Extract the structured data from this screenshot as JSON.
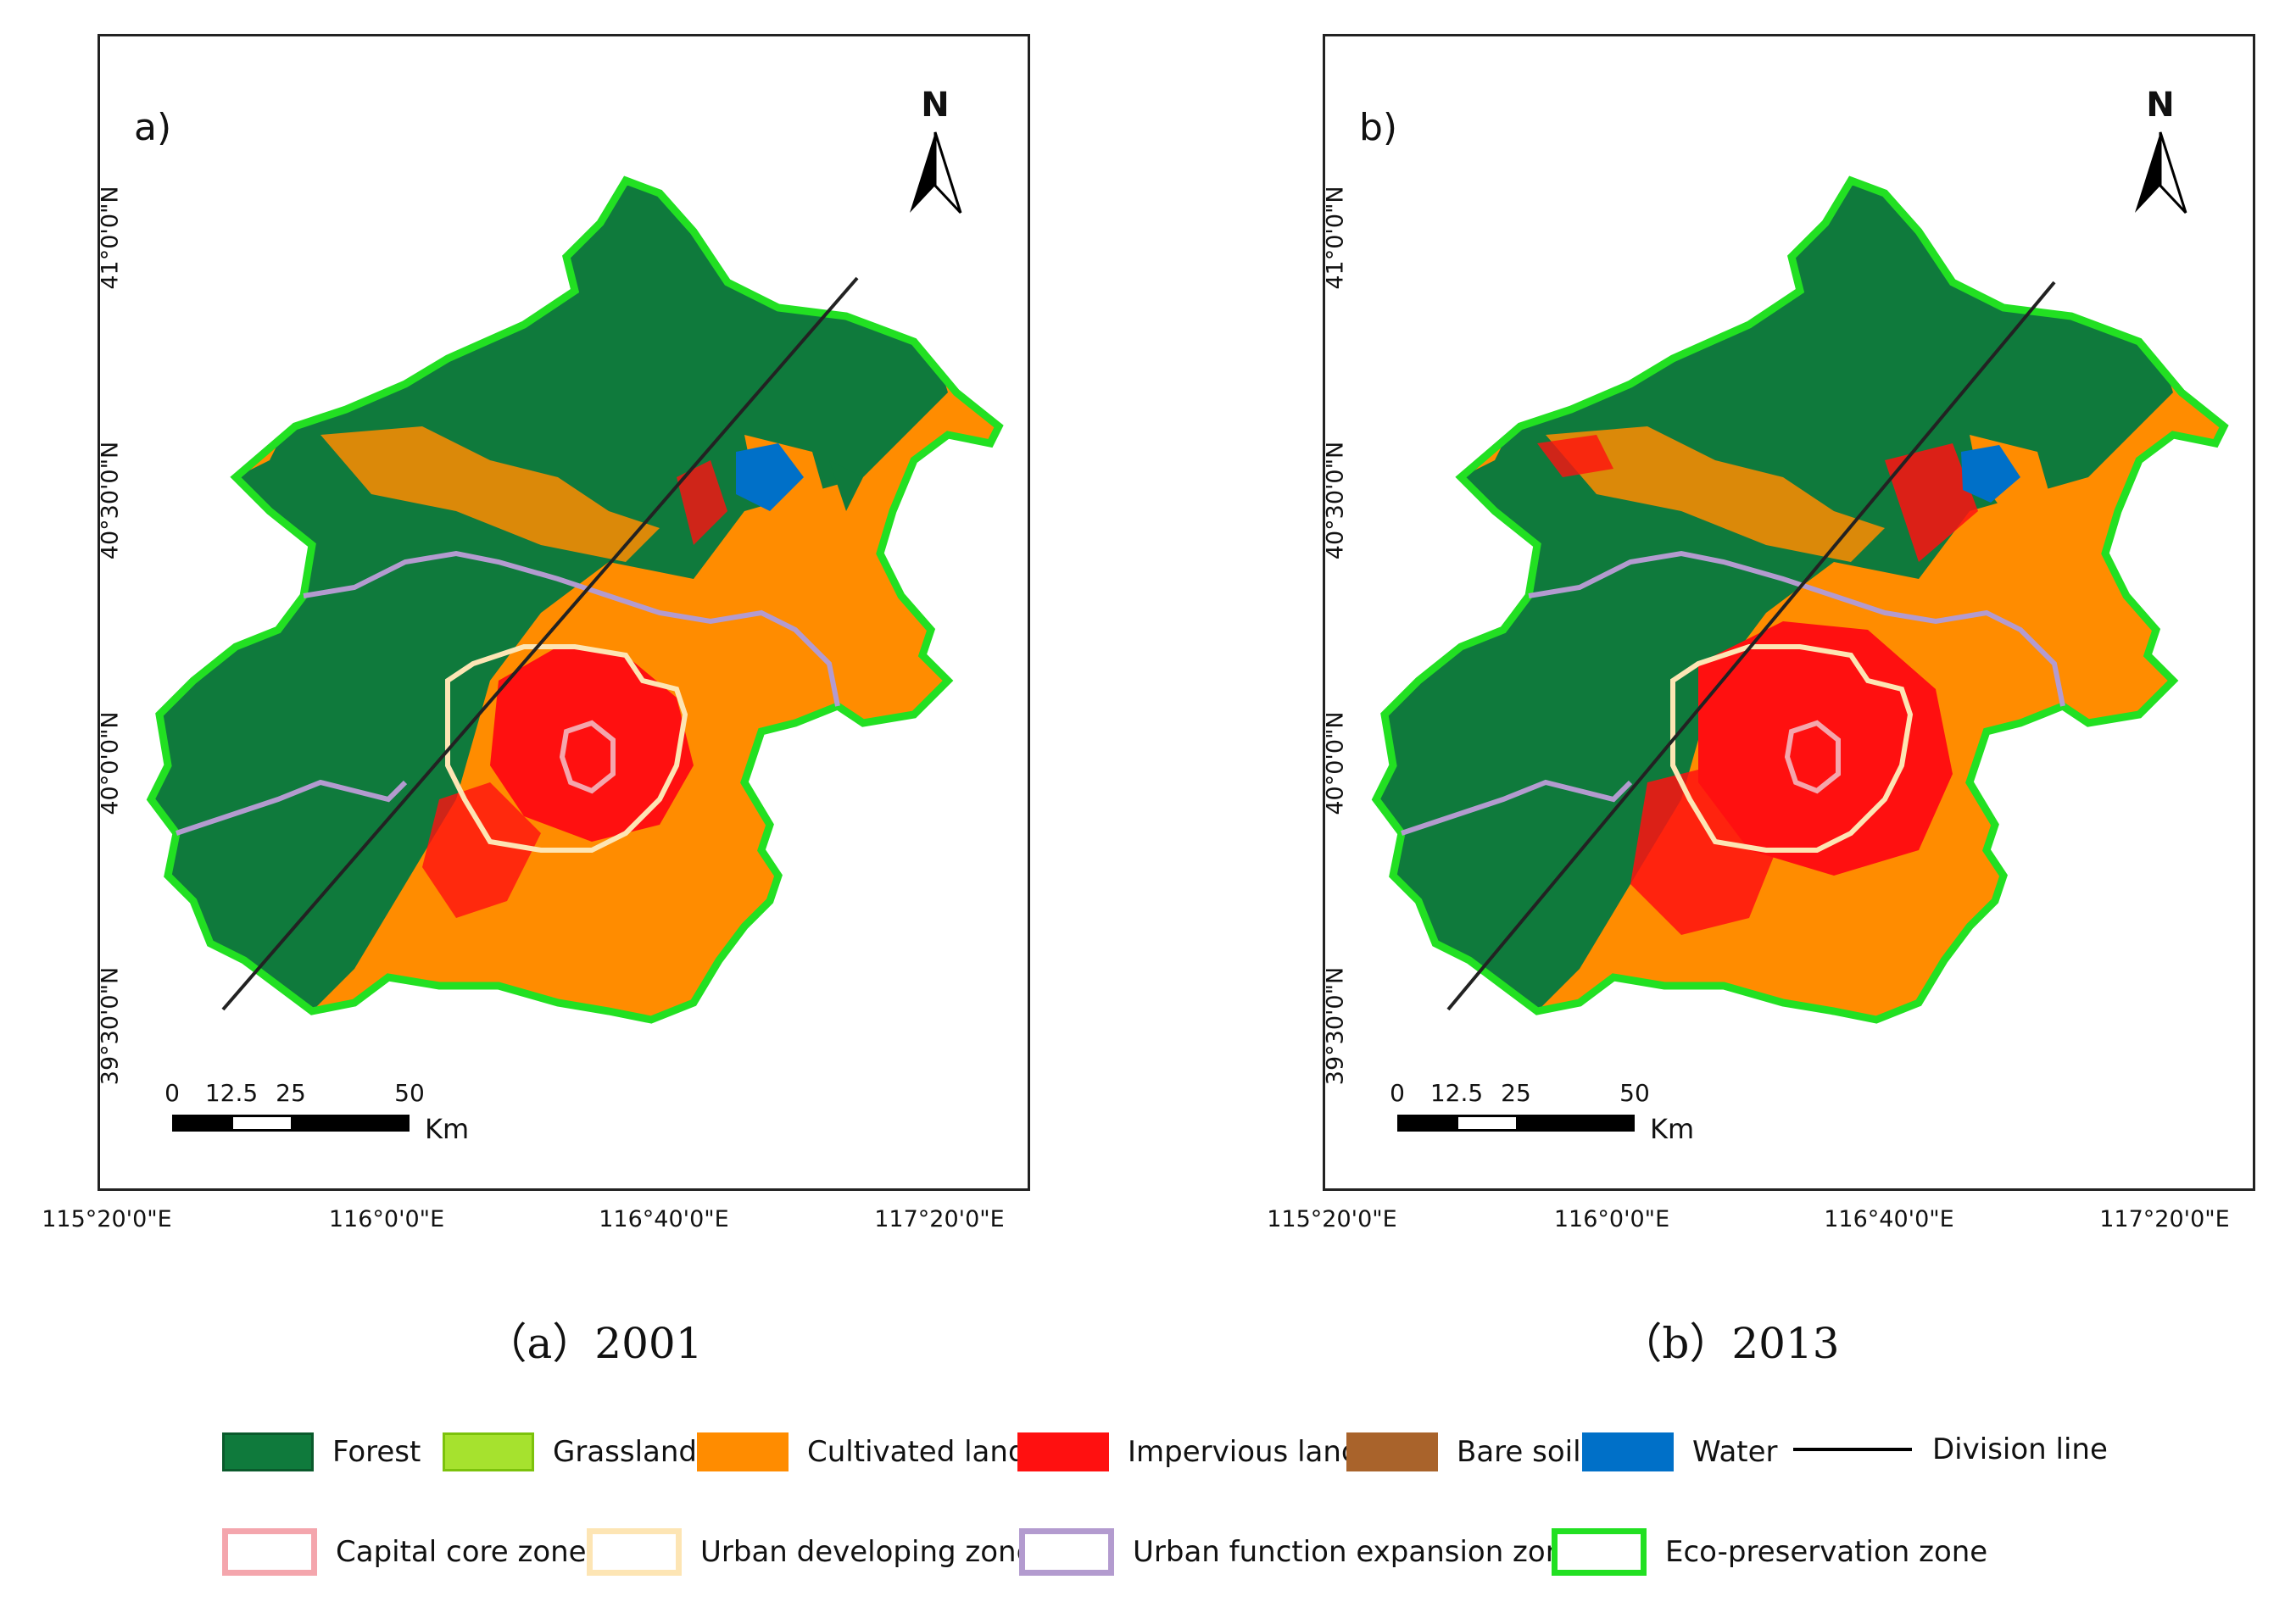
{
  "panels": [
    {
      "label": "a)",
      "caption": "（a）2001",
      "year": "2001"
    },
    {
      "label": "b)",
      "caption": "（b）2013",
      "year": "2013"
    }
  ],
  "north_label": "N",
  "lat_labels": [
    "41°0'0\"N",
    "40°30'0\"N",
    "40°0'0\"N",
    "39°30'0\"N"
  ],
  "lon_labels": [
    "115°20'0\"E",
    "116°0'0\"E",
    "116°40'0\"E",
    "117°20'0\"E"
  ],
  "scale_bar": {
    "ticks": [
      "0",
      "12.5",
      "25",
      "50"
    ],
    "unit": "Km"
  },
  "legend": {
    "land_cover": [
      {
        "label": "Forest",
        "color": "#0f7a3c"
      },
      {
        "label": "Grassland",
        "color": "#a6e22e"
      },
      {
        "label": "Cultivated land",
        "color": "#ff8c00"
      },
      {
        "label": "Impervious land",
        "color": "#ff1010"
      },
      {
        "label": "Bare soil",
        "color": "#a9632b"
      },
      {
        "label": "Water",
        "color": "#0070c8"
      }
    ],
    "division_line": {
      "label": "Division line",
      "color": "#000000"
    },
    "zones": [
      {
        "label": "Capital core zone",
        "color": "#f4a6ad"
      },
      {
        "label": "Urban developing zone",
        "color": "#fde5b4"
      },
      {
        "label": "Urban function expansion zone",
        "color": "#b39bcf"
      },
      {
        "label": "Eco-preservation zone",
        "color": "#22e022"
      }
    ]
  }
}
